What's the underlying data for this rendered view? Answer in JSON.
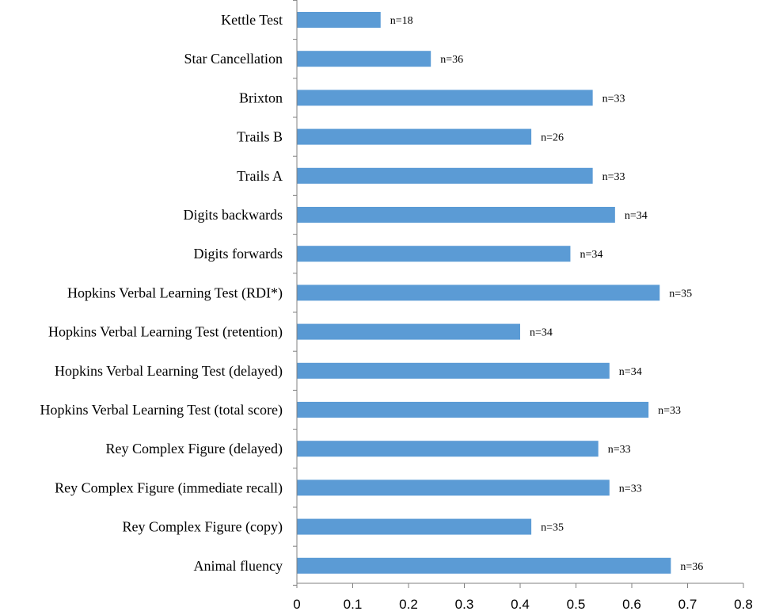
{
  "chart_data": {
    "type": "bar",
    "orientation": "horizontal",
    "title": "",
    "xlabel": "",
    "ylabel": "",
    "xlim": [
      0,
      0.8
    ],
    "x_ticks": [
      "0",
      "0.1",
      "0.2",
      "0.3",
      "0.4",
      "0.5",
      "0.6",
      "0.7",
      "0.8"
    ],
    "grid": false,
    "legend": "none",
    "bar_color": "#5b9bd5",
    "categories": [
      "Kettle Test",
      "Star Cancellation",
      "Brixton",
      "Trails B",
      "Trails A",
      "Digits backwards",
      "Digits forwards",
      "Hopkins Verbal Learning Test (RDI*)",
      "Hopkins Verbal Learning Test (retention)",
      "Hopkins Verbal Learning Test (delayed)",
      "Hopkins Verbal Learning Test (total score)",
      "Rey Complex Figure (delayed)",
      "Rey Complex Figure (immediate recall)",
      "Rey Complex Figure (copy)",
      "Animal fluency"
    ],
    "values": [
      0.15,
      0.24,
      0.53,
      0.42,
      0.53,
      0.57,
      0.49,
      0.65,
      0.4,
      0.56,
      0.63,
      0.54,
      0.56,
      0.42,
      0.67
    ],
    "data_labels": [
      "n=18",
      "n=36",
      "n=33",
      "n=26",
      "n=33",
      "n=34",
      "n=34",
      "n=35",
      "n=34",
      "n=34",
      "n=33",
      "n=33",
      "n=33",
      "n=35",
      "n=36"
    ]
  }
}
